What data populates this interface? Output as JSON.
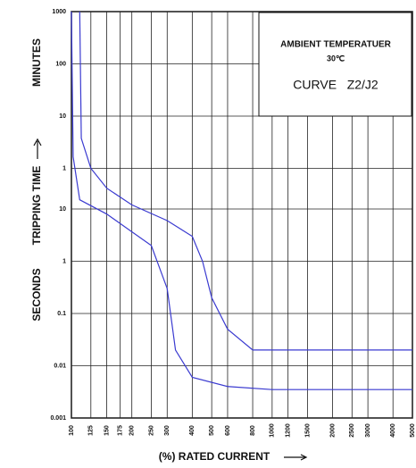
{
  "chart_data": {
    "type": "line",
    "y_axis_label": "TRIPPING TIME",
    "y_unit_upper": "MINUTES",
    "y_unit_lower": "SECONDS",
    "x_axis_label": "(%) RATED CURRENT",
    "annotation_lines": [
      "AMBIENT TEMPERATUER",
      "30℃",
      "CURVE   Z2/J2"
    ],
    "xscale": "log",
    "yscale": "log",
    "grid": true,
    "xlim": [
      100,
      5000
    ],
    "xticks": [
      100,
      125,
      150,
      175,
      200,
      250,
      300,
      400,
      500,
      600,
      800,
      1000,
      1200,
      1500,
      2000,
      2500,
      3000,
      4000,
      5000
    ],
    "ylim": [
      0.001,
      60000
    ],
    "yticks": [
      {
        "value": 60000,
        "label": "1000"
      },
      {
        "value": 6000,
        "label": "100"
      },
      {
        "value": 600,
        "label": "10"
      },
      {
        "value": 60,
        "label": "1"
      },
      10,
      1,
      0.1,
      0.01,
      0.001
    ],
    "series": [
      {
        "color": "#3a3ad0",
        "x": [
          110,
          112,
          125,
          150,
          200,
          300,
          400,
          450,
          500,
          600,
          800,
          5000
        ],
        "values": [
          60000,
          225,
          60,
          25,
          12,
          6,
          3,
          1,
          0.2,
          0.05,
          0.02,
          0.02
        ]
      },
      {
        "color": "#3a3ad0",
        "x": [
          100,
          102,
          110,
          150,
          250,
          300,
          330,
          400,
          600,
          1000,
          5000
        ],
        "values": [
          60000,
          100,
          15,
          8,
          2,
          0.3,
          0.02,
          0.006,
          0.004,
          0.0035,
          0.0035
        ]
      }
    ]
  }
}
